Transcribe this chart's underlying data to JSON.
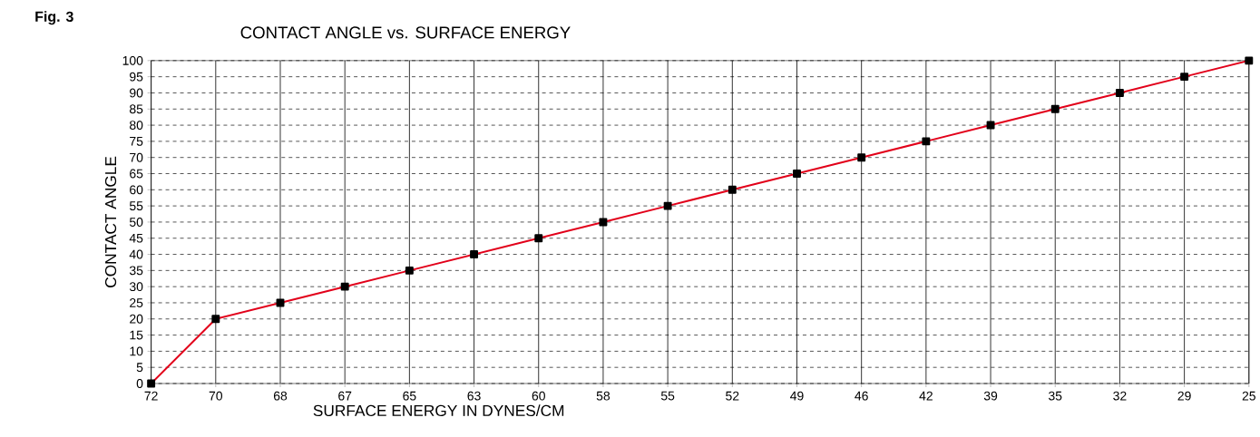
{
  "chart_data": {
    "type": "line",
    "title": "CONTACT ANGLE vs. SURFACE ENERGY",
    "xlabel": "SURFACE ENERGY IN DYNES/CM",
    "ylabel": "CONTACT ANGLE",
    "annotations": [
      "Fig. 3"
    ],
    "categories": [
      "72",
      "70",
      "68",
      "67",
      "65",
      "63",
      "60",
      "58",
      "55",
      "52",
      "49",
      "46",
      "42",
      "39",
      "35",
      "32",
      "29",
      "25"
    ],
    "values": [
      0,
      20,
      25,
      30,
      35,
      40,
      45,
      50,
      55,
      60,
      65,
      70,
      75,
      80,
      85,
      90,
      95,
      100
    ],
    "color": "#e2001a",
    "marker": "square",
    "line_style": "solid",
    "grid": true,
    "ylim": [
      0,
      100
    ],
    "yticks": [
      0,
      5,
      10,
      15,
      20,
      25,
      30,
      35,
      40,
      45,
      50,
      55,
      60,
      65,
      70,
      75,
      80,
      85,
      90,
      95,
      100
    ]
  }
}
